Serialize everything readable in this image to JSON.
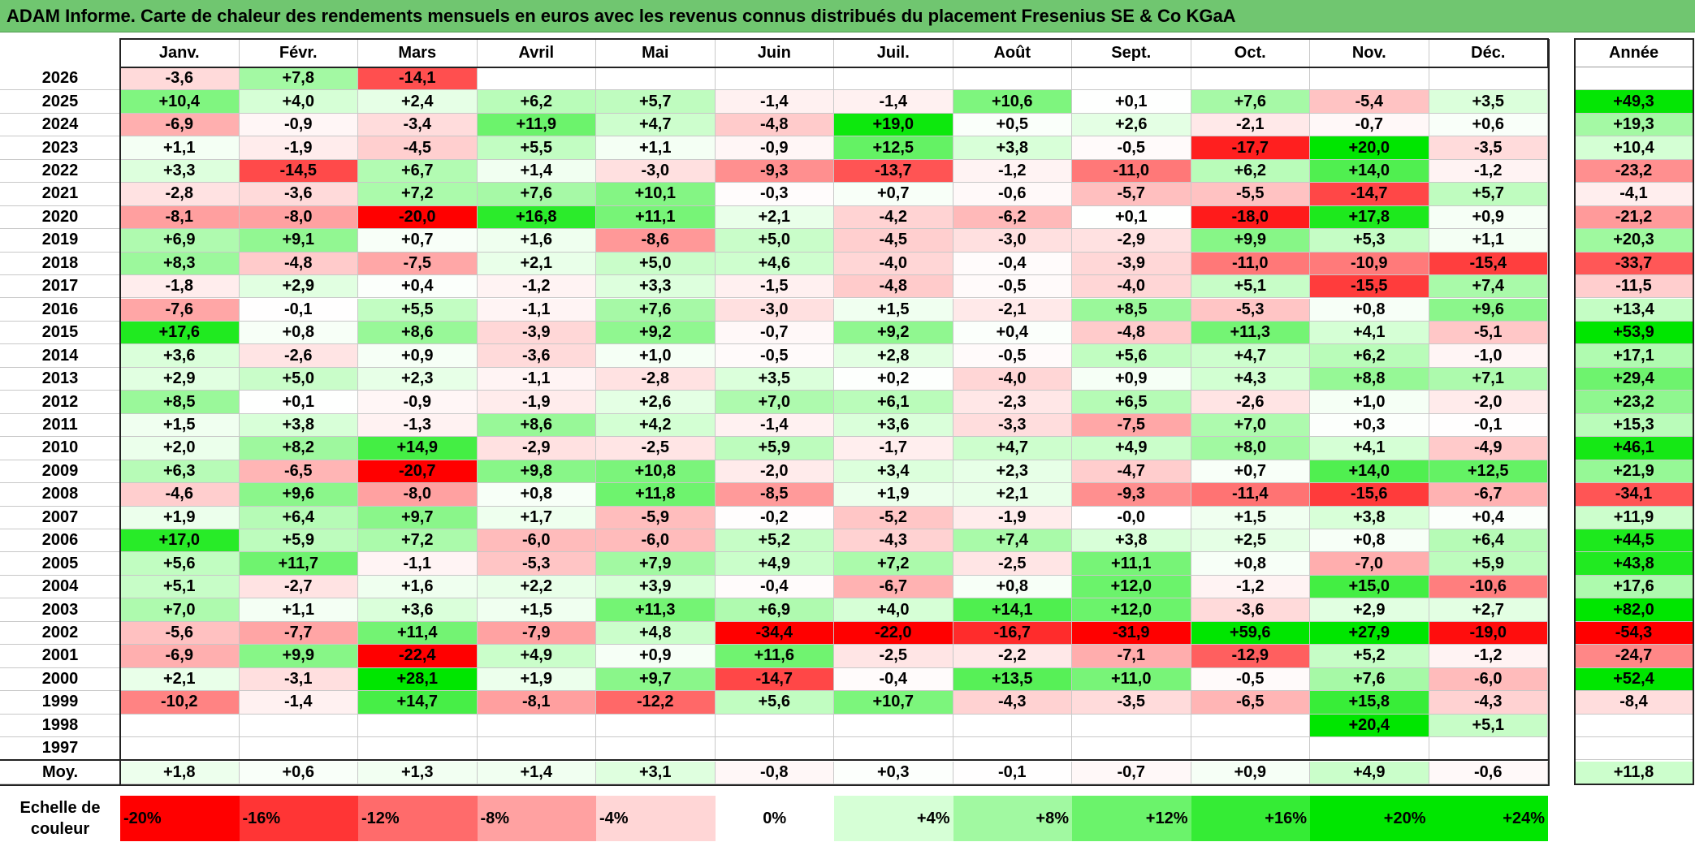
{
  "title": "ADAM Informe. Carte de chaleur des rendements mensuels en euros avec les revenus connus distribués du placement Fresenius SE & Co KGaA",
  "chart_data": {
    "type": "heatmap",
    "title": "ADAM Informe. Carte de chaleur des rendements mensuels en euros avec les revenus connus distribués du placement Fresenius SE & Co KGaA",
    "months": [
      "Janv.",
      "Févr.",
      "Mars",
      "Avril",
      "Mai",
      "Juin",
      "Juil.",
      "Août",
      "Sept.",
      "Oct.",
      "Nov.",
      "Déc."
    ],
    "year_header": "Année",
    "rows": [
      {
        "year": "2026",
        "months": [
          "-3,6",
          "+7,8",
          "-14,1",
          "",
          "",
          "",
          "",
          "",
          "",
          "",
          "",
          ""
        ],
        "annual": ""
      },
      {
        "year": "2025",
        "months": [
          "+10,4",
          "+4,0",
          "+2,4",
          "+6,2",
          "+5,7",
          "-1,4",
          "-1,4",
          "+10,6",
          "+0,1",
          "+7,6",
          "-5,4",
          "+3,5"
        ],
        "annual": "+49,3"
      },
      {
        "year": "2024",
        "months": [
          "-6,9",
          "-0,9",
          "-3,4",
          "+11,9",
          "+4,7",
          "-4,8",
          "+19,0",
          "+0,5",
          "+2,6",
          "-2,1",
          "-0,7",
          "+0,6"
        ],
        "annual": "+19,3"
      },
      {
        "year": "2023",
        "months": [
          "+1,1",
          "-1,9",
          "-4,5",
          "+5,5",
          "+1,1",
          "-0,9",
          "+12,5",
          "+3,8",
          "-0,5",
          "-17,7",
          "+20,0",
          "-3,5"
        ],
        "annual": "+10,4"
      },
      {
        "year": "2022",
        "months": [
          "+3,3",
          "-14,5",
          "+6,7",
          "+1,4",
          "-3,0",
          "-9,3",
          "-13,7",
          "-1,2",
          "-11,0",
          "+6,2",
          "+14,0",
          "-1,2"
        ],
        "annual": "-23,2"
      },
      {
        "year": "2021",
        "months": [
          "-2,8",
          "-3,6",
          "+7,2",
          "+7,6",
          "+10,1",
          "-0,3",
          "+0,7",
          "-0,6",
          "-5,7",
          "-5,5",
          "-14,7",
          "+5,7"
        ],
        "annual": "-4,1"
      },
      {
        "year": "2020",
        "months": [
          "-8,1",
          "-8,0",
          "-20,0",
          "+16,8",
          "+11,1",
          "+2,1",
          "-4,2",
          "-6,2",
          "+0,1",
          "-18,0",
          "+17,8",
          "+0,9"
        ],
        "annual": "-21,2"
      },
      {
        "year": "2019",
        "months": [
          "+6,9",
          "+9,1",
          "+0,7",
          "+1,6",
          "-8,6",
          "+5,0",
          "-4,5",
          "-3,0",
          "-2,9",
          "+9,9",
          "+5,3",
          "+1,1"
        ],
        "annual": "+20,3"
      },
      {
        "year": "2018",
        "months": [
          "+8,3",
          "-4,8",
          "-7,5",
          "+2,1",
          "+5,0",
          "+4,6",
          "-4,0",
          "-0,4",
          "-3,9",
          "-11,0",
          "-10,9",
          "-15,4"
        ],
        "annual": "-33,7"
      },
      {
        "year": "2017",
        "months": [
          "-1,8",
          "+2,9",
          "+0,4",
          "-1,2",
          "+3,3",
          "-1,5",
          "-4,8",
          "-0,5",
          "-4,0",
          "+5,1",
          "-15,5",
          "+7,4"
        ],
        "annual": "-11,5"
      },
      {
        "year": "2016",
        "months": [
          "-7,6",
          "-0,1",
          "+5,5",
          "-1,1",
          "+7,6",
          "-3,0",
          "+1,5",
          "-2,1",
          "+8,5",
          "-5,3",
          "+0,8",
          "+9,6"
        ],
        "annual": "+13,4"
      },
      {
        "year": "2015",
        "months": [
          "+17,6",
          "+0,8",
          "+8,6",
          "-3,9",
          "+9,2",
          "-0,7",
          "+9,2",
          "+0,4",
          "-4,8",
          "+11,3",
          "+4,1",
          "-5,1"
        ],
        "annual": "+53,9"
      },
      {
        "year": "2014",
        "months": [
          "+3,6",
          "-2,6",
          "+0,9",
          "-3,6",
          "+1,0",
          "-0,5",
          "+2,8",
          "-0,5",
          "+5,6",
          "+4,7",
          "+6,2",
          "-1,0"
        ],
        "annual": "+17,1"
      },
      {
        "year": "2013",
        "months": [
          "+2,9",
          "+5,0",
          "+2,3",
          "-1,1",
          "-2,8",
          "+3,5",
          "+0,2",
          "-4,0",
          "+0,9",
          "+4,3",
          "+8,8",
          "+7,1"
        ],
        "annual": "+29,4"
      },
      {
        "year": "2012",
        "months": [
          "+8,5",
          "+0,1",
          "-0,9",
          "-1,9",
          "+2,6",
          "+7,0",
          "+6,1",
          "-2,3",
          "+6,5",
          "-2,6",
          "+1,0",
          "-2,0"
        ],
        "annual": "+23,2"
      },
      {
        "year": "2011",
        "months": [
          "+1,5",
          "+3,8",
          "-1,3",
          "+8,6",
          "+4,2",
          "-1,4",
          "+3,6",
          "-3,3",
          "-7,5",
          "+7,0",
          "+0,3",
          "-0,1"
        ],
        "annual": "+15,3"
      },
      {
        "year": "2010",
        "months": [
          "+2,0",
          "+8,2",
          "+14,9",
          "-2,9",
          "-2,5",
          "+5,9",
          "-1,7",
          "+4,7",
          "+4,9",
          "+8,0",
          "+4,1",
          "-4,9"
        ],
        "annual": "+46,1"
      },
      {
        "year": "2009",
        "months": [
          "+6,3",
          "-6,5",
          "-20,7",
          "+9,8",
          "+10,8",
          "-2,0",
          "+3,4",
          "+2,3",
          "-4,7",
          "+0,7",
          "+14,0",
          "+12,5"
        ],
        "annual": "+21,9"
      },
      {
        "year": "2008",
        "months": [
          "-4,6",
          "+9,6",
          "-8,0",
          "+0,8",
          "+11,8",
          "-8,5",
          "+1,9",
          "+2,1",
          "-9,3",
          "-11,4",
          "-15,6",
          "-6,7"
        ],
        "annual": "-34,1"
      },
      {
        "year": "2007",
        "months": [
          "+1,9",
          "+6,4",
          "+9,7",
          "+1,7",
          "-5,9",
          "-0,2",
          "-5,2",
          "-1,9",
          "-0,0",
          "+1,5",
          "+3,8",
          "+0,4"
        ],
        "annual": "+11,9"
      },
      {
        "year": "2006",
        "months": [
          "+17,0",
          "+5,9",
          "+7,2",
          "-6,0",
          "-6,0",
          "+5,2",
          "-4,3",
          "+7,4",
          "+3,8",
          "+2,5",
          "+0,8",
          "+6,4"
        ],
        "annual": "+44,5"
      },
      {
        "year": "2005",
        "months": [
          "+5,6",
          "+11,7",
          "-1,1",
          "-5,3",
          "+7,9",
          "+4,9",
          "+7,2",
          "-2,5",
          "+11,1",
          "+0,8",
          "-7,0",
          "+5,9"
        ],
        "annual": "+43,8"
      },
      {
        "year": "2004",
        "months": [
          "+5,1",
          "-2,7",
          "+1,6",
          "+2,2",
          "+3,9",
          "-0,4",
          "-6,7",
          "+0,8",
          "+12,0",
          "-1,2",
          "+15,0",
          "-10,6"
        ],
        "annual": "+17,6"
      },
      {
        "year": "2003",
        "months": [
          "+7,0",
          "+1,1",
          "+3,6",
          "+1,5",
          "+11,3",
          "+6,9",
          "+4,0",
          "+14,1",
          "+12,0",
          "-3,6",
          "+2,9",
          "+2,7"
        ],
        "annual": "+82,0"
      },
      {
        "year": "2002",
        "months": [
          "-5,6",
          "-7,7",
          "+11,4",
          "-7,9",
          "+4,8",
          "-34,4",
          "-22,0",
          "-16,7",
          "-31,9",
          "+59,6",
          "+27,9",
          "-19,0"
        ],
        "annual": "-54,3"
      },
      {
        "year": "2001",
        "months": [
          "-6,9",
          "+9,9",
          "-22,4",
          "+4,9",
          "+0,9",
          "+11,6",
          "-2,5",
          "-2,2",
          "-7,1",
          "-12,9",
          "+5,2",
          "-1,2"
        ],
        "annual": "-24,7"
      },
      {
        "year": "2000",
        "months": [
          "+2,1",
          "-3,1",
          "+28,1",
          "+1,9",
          "+9,7",
          "-14,7",
          "-0,4",
          "+13,5",
          "+11,0",
          "-0,5",
          "+7,6",
          "-6,0"
        ],
        "annual": "+52,4"
      },
      {
        "year": "1999",
        "months": [
          "-10,2",
          "-1,4",
          "+14,7",
          "-8,1",
          "-12,2",
          "+5,6",
          "+10,7",
          "-4,3",
          "-3,5",
          "-6,5",
          "+15,8",
          "-4,3"
        ],
        "annual": "-8,4"
      },
      {
        "year": "1998",
        "months": [
          "",
          "",
          "",
          "",
          "",
          "",
          "",
          "",
          "",
          "",
          "+20,4",
          "+5,1"
        ],
        "annual": ""
      },
      {
        "year": "1997",
        "months": [
          "",
          "",
          "",
          "",
          "",
          "",
          "",
          "",
          "",
          "",
          "",
          ""
        ],
        "annual": ""
      }
    ],
    "average": {
      "label": "Moy.",
      "months": [
        "+1,8",
        "+0,6",
        "+1,3",
        "+1,4",
        "+3,1",
        "-0,8",
        "+0,3",
        "-0,1",
        "-0,7",
        "+0,9",
        "+4,9",
        "-0,6"
      ],
      "annual": "+11,8"
    },
    "scale": {
      "label": "Echelle de couleur",
      "steps": [
        {
          "label": "-20%",
          "value": -20
        },
        {
          "label": "-16%",
          "value": -16
        },
        {
          "label": "-12%",
          "value": -12
        },
        {
          "label": "-8%",
          "value": -8
        },
        {
          "label": "-4%",
          "value": -4
        },
        {
          "label": "0%",
          "value": 0
        },
        {
          "label": "+4%",
          "value": 4
        },
        {
          "label": "+8%",
          "value": 8
        },
        {
          "label": "+12%",
          "value": 12
        },
        {
          "label": "+16%",
          "value": 16
        },
        {
          "label": "+20%",
          "value": 20
        },
        {
          "label": "+24%",
          "value": 24
        }
      ]
    }
  }
}
